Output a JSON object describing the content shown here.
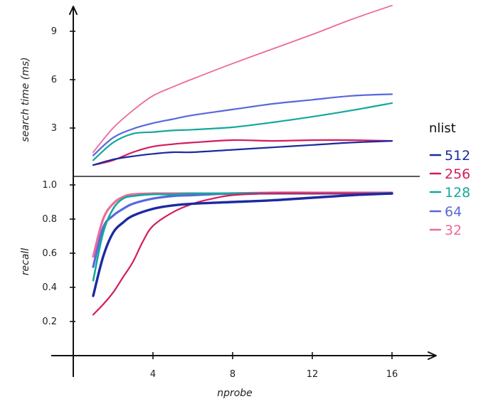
{
  "chart_data": [
    {
      "type": "line",
      "panel": "top",
      "title": "",
      "xlabel": "",
      "ylabel": "search time (ms)",
      "xlim": [
        0,
        17
      ],
      "ylim": [
        0,
        10.5
      ],
      "yticks": [
        3,
        6,
        9
      ],
      "ytick_labels": [
        "3",
        "6",
        "9"
      ],
      "series": [
        {
          "name": "512",
          "color": "#1b2aa0",
          "x": [
            1,
            2,
            3,
            4,
            5,
            6,
            8,
            10,
            12,
            14,
            16
          ],
          "y": [
            0.7,
            1.05,
            1.25,
            1.4,
            1.5,
            1.5,
            1.65,
            1.8,
            1.95,
            2.1,
            2.2
          ]
        },
        {
          "name": "256",
          "color": "#d41c5c",
          "x": [
            1,
            2,
            3,
            4,
            5,
            6,
            8,
            10,
            12,
            14,
            16
          ],
          "y": [
            0.7,
            1.0,
            1.5,
            1.85,
            2.0,
            2.1,
            2.25,
            2.2,
            2.25,
            2.25,
            2.2
          ]
        },
        {
          "name": "128",
          "color": "#12a89a",
          "x": [
            1,
            2,
            3,
            4,
            5,
            6,
            8,
            10,
            12,
            14,
            16
          ],
          "y": [
            1.0,
            2.1,
            2.65,
            2.75,
            2.85,
            2.9,
            3.05,
            3.35,
            3.7,
            4.1,
            4.55
          ]
        },
        {
          "name": "64",
          "color": "#5868dc",
          "x": [
            1,
            2,
            3,
            4,
            5,
            6,
            8,
            10,
            12,
            14,
            16
          ],
          "y": [
            1.3,
            2.4,
            2.95,
            3.3,
            3.55,
            3.8,
            4.15,
            4.5,
            4.75,
            5.0,
            5.1
          ]
        },
        {
          "name": "32",
          "color": "#ee6a98",
          "x": [
            1,
            2,
            3,
            4,
            5,
            6,
            8,
            10,
            12,
            14,
            16
          ],
          "y": [
            1.5,
            3.0,
            4.1,
            5.0,
            5.55,
            6.05,
            7.0,
            7.9,
            8.8,
            9.75,
            10.6
          ]
        }
      ]
    },
    {
      "type": "line",
      "panel": "bottom",
      "title": "",
      "xlabel": "nprobe",
      "ylabel": "recall",
      "xlim": [
        0,
        17
      ],
      "ylim": [
        0,
        1.0
      ],
      "xticks": [
        4,
        8,
        12,
        16
      ],
      "xtick_labels": [
        "4",
        "8",
        "12",
        "16"
      ],
      "yticks": [
        0.2,
        0.4,
        0.6,
        0.8,
        1.0
      ],
      "ytick_labels": [
        "0.2",
        "0.4",
        "0.6",
        "0.8",
        "1.0"
      ],
      "series": [
        {
          "name": "512",
          "color": "#1b2aa0",
          "x": [
            1,
            1.5,
            2,
            2.5,
            3,
            4,
            5,
            6,
            8,
            10,
            12,
            14,
            16
          ],
          "y": [
            0.35,
            0.58,
            0.72,
            0.78,
            0.82,
            0.86,
            0.88,
            0.89,
            0.9,
            0.91,
            0.925,
            0.94,
            0.95
          ]
        },
        {
          "name": "256",
          "color": "#d41c5c",
          "x": [
            1,
            1.5,
            2,
            2.5,
            3,
            3.5,
            4,
            5,
            6,
            7,
            8,
            10,
            12,
            14,
            16
          ],
          "y": [
            0.24,
            0.3,
            0.37,
            0.46,
            0.55,
            0.67,
            0.76,
            0.84,
            0.89,
            0.92,
            0.94,
            0.95,
            0.95,
            0.95,
            0.95
          ]
        },
        {
          "name": "128",
          "color": "#12a89a",
          "x": [
            1,
            1.5,
            2,
            2.5,
            3,
            4,
            5,
            6,
            8,
            10,
            12,
            14,
            16
          ],
          "y": [
            0.44,
            0.72,
            0.86,
            0.92,
            0.935,
            0.945,
            0.945,
            0.95,
            0.95,
            0.95,
            0.95,
            0.95,
            0.95
          ]
        },
        {
          "name": "64",
          "color": "#5868dc",
          "x": [
            1,
            1.5,
            2,
            2.5,
            3,
            4,
            5,
            6,
            8,
            10,
            12,
            14,
            16
          ],
          "y": [
            0.52,
            0.75,
            0.82,
            0.86,
            0.89,
            0.92,
            0.935,
            0.94,
            0.95,
            0.95,
            0.95,
            0.95,
            0.95
          ]
        },
        {
          "name": "32",
          "color": "#ee6a98",
          "x": [
            1,
            1.5,
            2,
            2.5,
            3,
            4,
            5,
            6,
            8,
            10,
            12,
            14,
            16
          ],
          "y": [
            0.58,
            0.8,
            0.89,
            0.93,
            0.945,
            0.95,
            0.95,
            0.95,
            0.95,
            0.955,
            0.955,
            0.955,
            0.955
          ]
        }
      ]
    }
  ],
  "legend": {
    "title": "nlist",
    "entries": [
      {
        "label": "512",
        "color": "#1b2aa0"
      },
      {
        "label": "256",
        "color": "#d41c5c"
      },
      {
        "label": "128",
        "color": "#12a89a"
      },
      {
        "label": "64",
        "color": "#5868dc"
      },
      {
        "label": "32",
        "color": "#ee6a98"
      }
    ]
  }
}
